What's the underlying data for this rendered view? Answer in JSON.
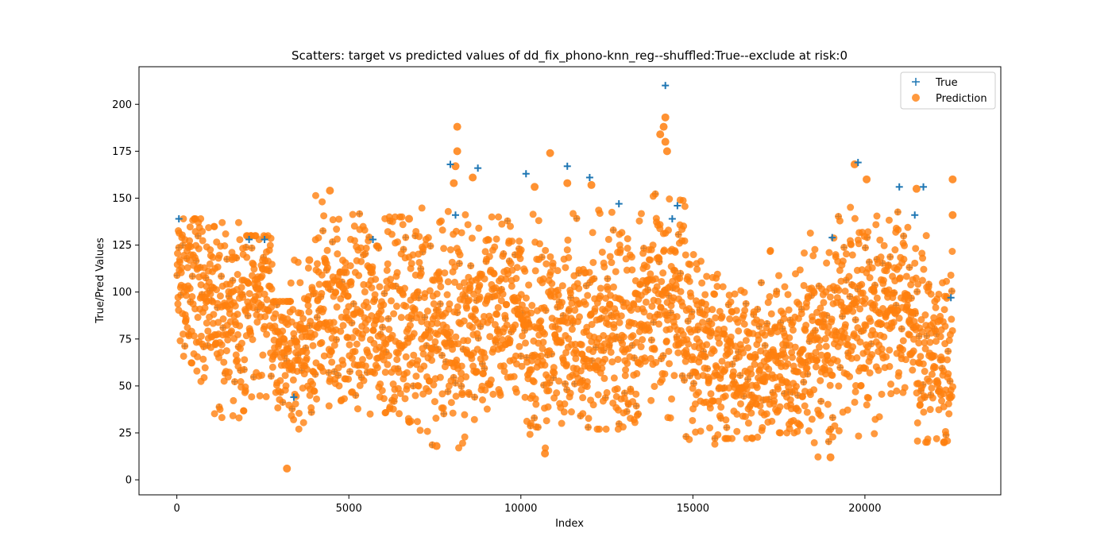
{
  "chart_data": {
    "type": "scatter",
    "title": "Scatters: target vs predicted values of dd_fix_phono-knn_reg--shuffled:True--exclude at risk:0",
    "xlabel": "Index",
    "ylabel": "True/Pred Values",
    "xlim": [
      -1100,
      23950
    ],
    "ylim": [
      -8,
      220
    ],
    "xticks": [
      0,
      5000,
      10000,
      15000,
      20000
    ],
    "yticks": [
      0,
      25,
      50,
      75,
      100,
      125,
      150,
      175,
      200
    ],
    "grid": false,
    "legend_position": "top-right",
    "n_points": 22500,
    "series": [
      {
        "name": "True",
        "marker": "+",
        "color": "#1f77b4",
        "points": [
          [
            60,
            139
          ],
          [
            2100,
            128
          ],
          [
            2550,
            128
          ],
          [
            3400,
            44
          ],
          [
            5700,
            128
          ],
          [
            7950,
            168
          ],
          [
            8100,
            141
          ],
          [
            8750,
            166
          ],
          [
            10150,
            163
          ],
          [
            11350,
            167
          ],
          [
            12000,
            161
          ],
          [
            12850,
            147
          ],
          [
            14200,
            210
          ],
          [
            14400,
            139
          ],
          [
            14550,
            146
          ],
          [
            19050,
            129
          ],
          [
            19800,
            169
          ],
          [
            21000,
            156
          ],
          [
            21450,
            141
          ],
          [
            21700,
            156
          ],
          [
            22500,
            97
          ]
        ]
      },
      {
        "name": "Prediction",
        "marker": "o",
        "color": "#ff7f0e",
        "points": [
          [
            8150,
            188
          ],
          [
            8150,
            175
          ],
          [
            8100,
            167
          ],
          [
            8050,
            158
          ],
          [
            8600,
            161
          ],
          [
            10850,
            174
          ],
          [
            10400,
            156
          ],
          [
            11350,
            158
          ],
          [
            12050,
            157
          ],
          [
            14200,
            193
          ],
          [
            14150,
            188
          ],
          [
            14200,
            180
          ],
          [
            14250,
            175
          ],
          [
            14050,
            184
          ],
          [
            19700,
            168
          ],
          [
            20050,
            160
          ],
          [
            21500,
            155
          ],
          [
            22550,
            160
          ],
          [
            22550,
            141
          ],
          [
            3200,
            6
          ],
          [
            19000,
            12
          ],
          [
            10700,
            14
          ],
          [
            22300,
            20
          ],
          [
            7550,
            18
          ],
          [
            4450,
            154
          ],
          [
            3850,
            117
          ],
          [
            6750,
            139
          ]
        ]
      }
    ],
    "segments": [
      {
        "range": [
          0,
          700
        ],
        "center": 105,
        "spread": 35,
        "min": 48,
        "max": 139
      },
      {
        "range": [
          700,
          1300
        ],
        "center": 95,
        "spread": 35,
        "min": 35,
        "max": 135
      },
      {
        "range": [
          1300,
          2000
        ],
        "center": 85,
        "spread": 40,
        "min": 33,
        "max": 137
      },
      {
        "range": [
          2000,
          2800
        ],
        "center": 100,
        "spread": 35,
        "min": 31,
        "max": 130
      },
      {
        "range": [
          2800,
          3300
        ],
        "center": 75,
        "spread": 30,
        "min": 37,
        "max": 95
      },
      {
        "range": [
          3300,
          4000
        ],
        "center": 65,
        "spread": 35,
        "min": 21,
        "max": 117
      },
      {
        "range": [
          4000,
          5500
        ],
        "center": 90,
        "spread": 40,
        "min": 27,
        "max": 152
      },
      {
        "range": [
          5500,
          7000
        ],
        "center": 85,
        "spread": 45,
        "min": 20,
        "max": 140
      },
      {
        "range": [
          7000,
          8500
        ],
        "center": 80,
        "spread": 45,
        "min": 17,
        "max": 145
      },
      {
        "range": [
          8500,
          10000
        ],
        "center": 90,
        "spread": 40,
        "min": 20,
        "max": 140
      },
      {
        "range": [
          10000,
          11000
        ],
        "center": 80,
        "spread": 45,
        "min": 14,
        "max": 150
      },
      {
        "range": [
          11000,
          12000
        ],
        "center": 75,
        "spread": 45,
        "min": 28,
        "max": 147
      },
      {
        "range": [
          12000,
          13500
        ],
        "center": 80,
        "spread": 45,
        "min": 27,
        "max": 145
      },
      {
        "range": [
          13500,
          14800
        ],
        "center": 95,
        "spread": 40,
        "min": 27,
        "max": 160
      },
      {
        "range": [
          14800,
          15800
        ],
        "center": 70,
        "spread": 40,
        "min": 19,
        "max": 137
      },
      {
        "range": [
          15800,
          17000
        ],
        "center": 60,
        "spread": 35,
        "min": 22,
        "max": 105
      },
      {
        "range": [
          17000,
          18200
        ],
        "center": 60,
        "spread": 35,
        "min": 25,
        "max": 125
      },
      {
        "range": [
          18200,
          19200
        ],
        "center": 75,
        "spread": 40,
        "min": 12,
        "max": 132
      },
      {
        "range": [
          19200,
          20300
        ],
        "center": 85,
        "spread": 40,
        "min": 23,
        "max": 150
      },
      {
        "range": [
          20300,
          21500
        ],
        "center": 90,
        "spread": 35,
        "min": 27,
        "max": 143
      },
      {
        "range": [
          21500,
          22550
        ],
        "center": 70,
        "spread": 40,
        "min": 20,
        "max": 133
      }
    ]
  }
}
